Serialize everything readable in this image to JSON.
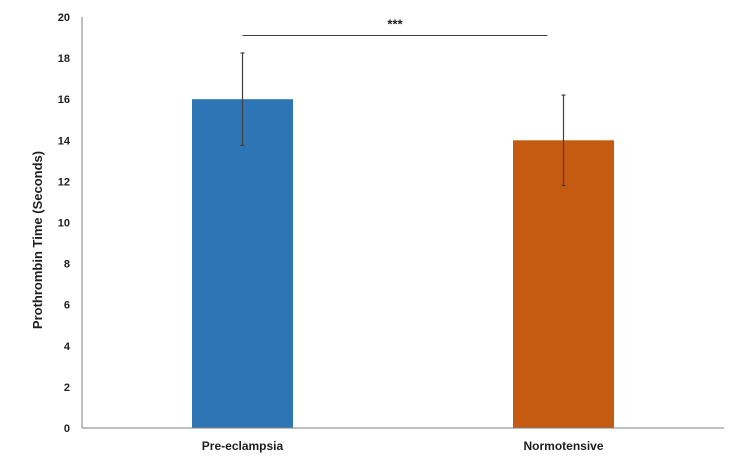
{
  "chart_data": {
    "type": "bar",
    "title": "",
    "xlabel": "",
    "ylabel": "Prothrombin Time (Seconds)",
    "ylim": [
      0,
      20
    ],
    "yticks": [
      0,
      2,
      4,
      6,
      8,
      10,
      12,
      14,
      16,
      18,
      20
    ],
    "grid": false,
    "legend": "none",
    "categories": [
      "Pre-eclampsia",
      "Normotensive"
    ],
    "values": [
      16.0,
      14.0
    ],
    "errors": [
      2.25,
      2.2
    ],
    "colors": [
      "#2E75B6",
      "#C55A11"
    ],
    "significance": {
      "label": "***",
      "between": [
        0,
        1
      ],
      "y": 19.1
    }
  }
}
